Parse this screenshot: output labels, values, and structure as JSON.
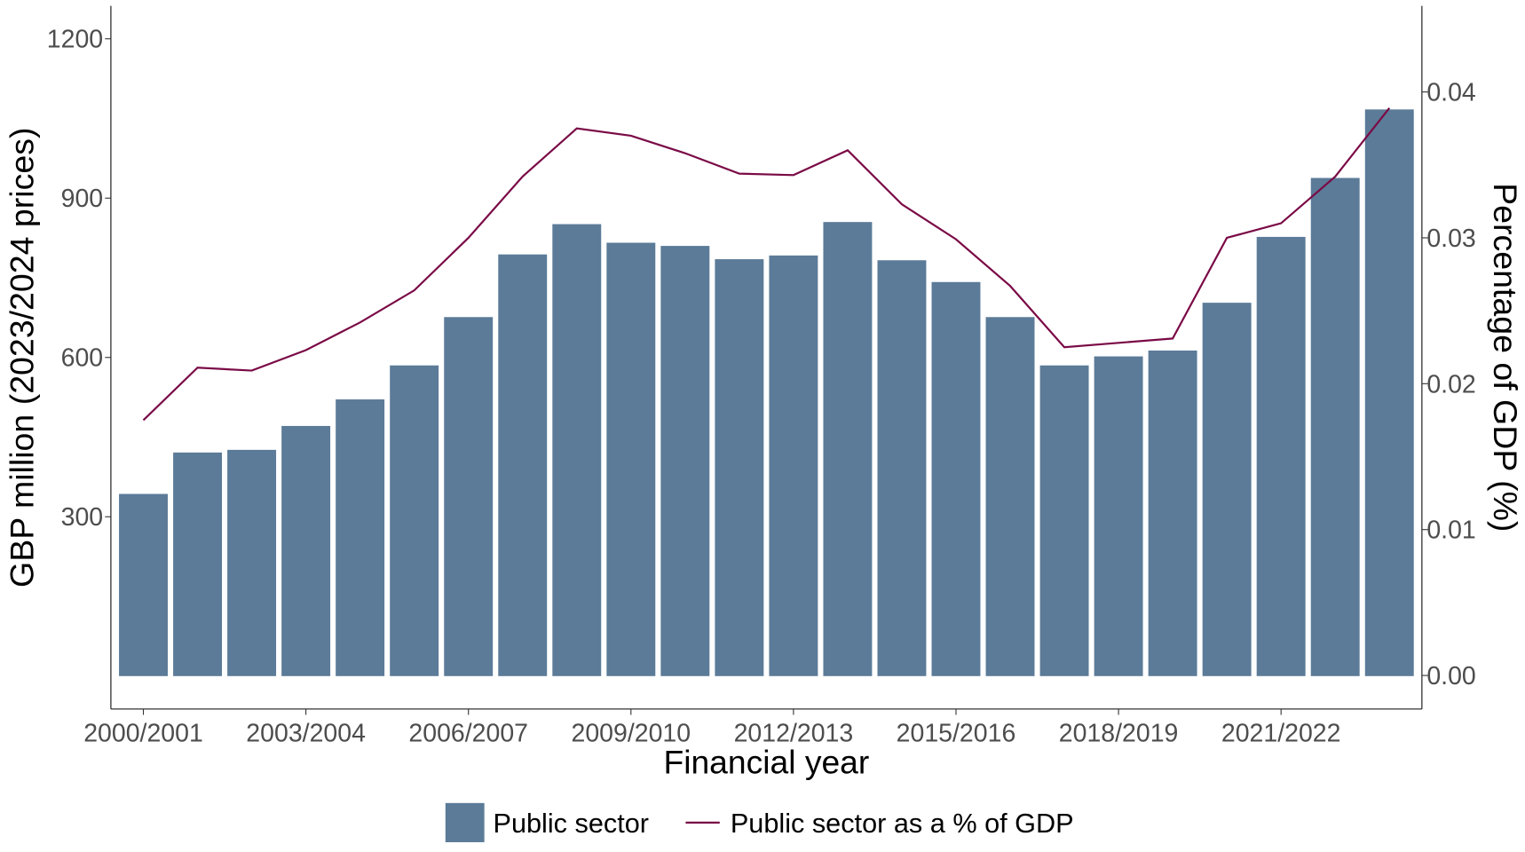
{
  "chart_data": {
    "type": "bar+line",
    "xlabel": "Financial year",
    "ylabel": "GBP million (2023/2024 prices)",
    "y2label": "Percentage of GDP (%)",
    "categories": [
      "2000/2001",
      "2001/2002",
      "2002/2003",
      "2003/2004",
      "2004/2005",
      "2005/2006",
      "2006/2007",
      "2007/2008",
      "2008/2009",
      "2009/2010",
      "2010/2011",
      "2011/2012",
      "2012/2013",
      "2013/2014",
      "2014/2015",
      "2015/2016",
      "2016/2017",
      "2017/2018",
      "2018/2019",
      "2019/2020",
      "2020/2021",
      "2021/2022",
      "2022/2023",
      "2023/2024"
    ],
    "x_tick_labels": [
      "2000/2001",
      "2003/2004",
      "2006/2007",
      "2009/2010",
      "2012/2013",
      "2015/2016",
      "2018/2019",
      "2021/2022"
    ],
    "y_ticks": [
      300,
      600,
      900,
      1200
    ],
    "y2_ticks": [
      "0.00",
      "0.01",
      "0.02",
      "0.03",
      "0.04"
    ],
    "ylim": [
      -62,
      1262
    ],
    "y2lim": [
      -0.0023,
      0.0459
    ],
    "grid": false,
    "legend_position": "bottom",
    "series": [
      {
        "name": "Public sector",
        "type": "bar",
        "axis": "left",
        "color": "#5b7b98",
        "values": [
          343,
          421,
          426,
          471,
          521,
          585,
          676,
          794,
          851,
          816,
          810,
          785,
          792,
          855,
          783,
          742,
          676,
          585,
          602,
          613,
          703,
          827,
          938,
          1067
        ]
      },
      {
        "name": "Public sector as a % of GDP",
        "type": "line",
        "axis": "right",
        "color": "#7a0a46",
        "values": [
          0.0175,
          0.0211,
          0.0209,
          0.0223,
          0.0242,
          0.0264,
          0.03,
          0.0342,
          0.0375,
          0.037,
          0.0358,
          0.0344,
          0.0343,
          0.036,
          0.0323,
          0.0299,
          0.0267,
          0.0225,
          0.0228,
          0.0231,
          0.03,
          0.031,
          0.0342,
          0.0389
        ]
      }
    ]
  }
}
